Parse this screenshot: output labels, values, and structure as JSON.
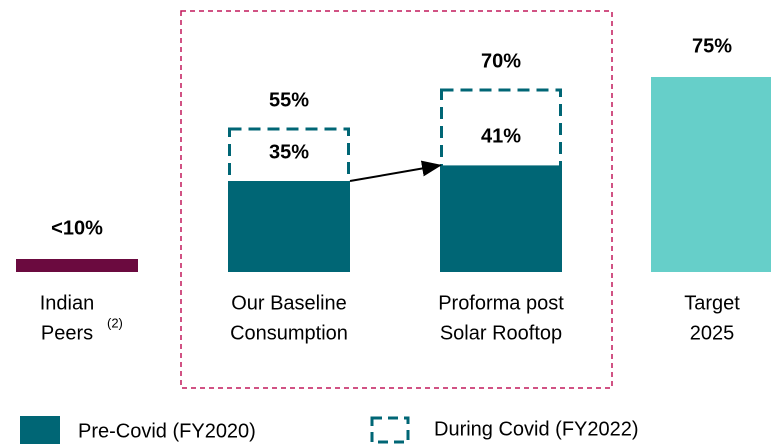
{
  "chart_data": {
    "type": "bar",
    "categories": [
      [
        "Indian",
        "Peers"
      ],
      [
        "Our Baseline",
        "Consumption"
      ],
      [
        "Proforma post",
        "Solar Rooftop"
      ],
      [
        "Target",
        "2025"
      ]
    ],
    "category_note": "(2)",
    "ylim": [
      0,
      100
    ],
    "series": [
      {
        "name": "Pre-Covid (FY2020)",
        "color": "#006675",
        "style": "solid",
        "values": [
          null,
          35,
          41,
          null
        ],
        "value_labels": [
          null,
          "35%",
          "41%",
          null
        ]
      },
      {
        "name": "During Covid (FY2022)",
        "color": "#006675",
        "style": "dashed",
        "values": [
          null,
          55,
          70,
          null
        ],
        "value_labels": [
          null,
          "55%",
          "70%",
          null
        ]
      }
    ],
    "highlights": [
      {
        "category": 0,
        "value": 5,
        "value_label": "<10%",
        "color": "#6b0a3f"
      },
      {
        "category": 3,
        "value": 75,
        "value_label": "75%",
        "color": "#66cfc9"
      }
    ]
  }
}
